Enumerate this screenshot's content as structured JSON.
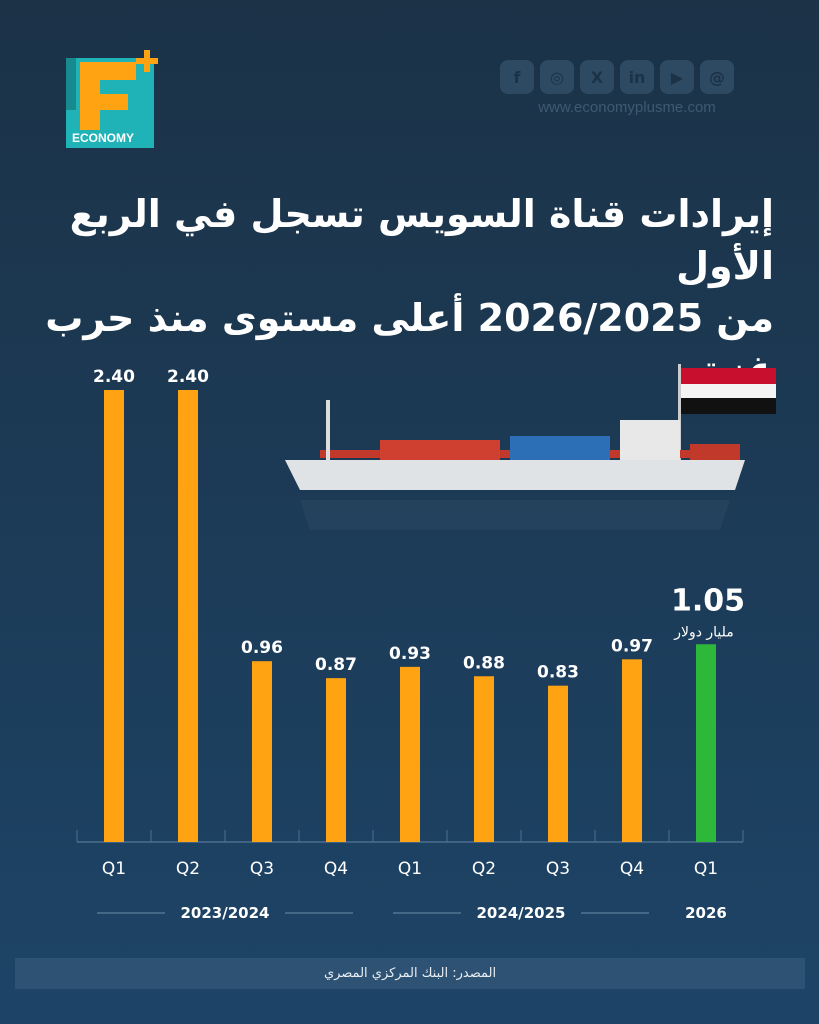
{
  "brand": {
    "logo_letter": "E",
    "logo_text": "ECONOMY",
    "website": "www.economyplusme.com",
    "social_icons": [
      "facebook-icon",
      "instagram-icon",
      "x-icon",
      "linkedin-icon",
      "youtube-icon",
      "threads-icon"
    ]
  },
  "title": {
    "line1": "إيرادات قناة السويس تسجل في الربع الأول",
    "line2": "من 2026/2025 أعلى مستوى منذ حرب غزة"
  },
  "chart_data": {
    "type": "bar",
    "categories": [
      "Q1",
      "Q2",
      "Q3",
      "Q4",
      "Q1",
      "Q2",
      "Q3",
      "Q4",
      "Q1"
    ],
    "groups": [
      {
        "label": "2023/2024",
        "span": [
          0,
          3
        ]
      },
      {
        "label": "2024/2025",
        "span": [
          4,
          7
        ]
      },
      {
        "label": "2026",
        "span": [
          8,
          8
        ]
      }
    ],
    "values": [
      2.4,
      2.4,
      0.96,
      0.87,
      0.93,
      0.88,
      0.83,
      0.97,
      1.05
    ],
    "value_labels": [
      "2.40",
      "2.40",
      "0.96",
      "0.87",
      "0.93",
      "0.88",
      "0.83",
      "0.97",
      "1.05"
    ],
    "highlight_index": 8,
    "highlight_unit": "مليار دولار",
    "colors": {
      "bar": "#ffa312",
      "highlight": "#2db83a",
      "axis": "#4d6f8f"
    },
    "ylim": [
      0,
      2.4
    ],
    "grid": false
  },
  "source": "المصدر: البنك المركزي المصري"
}
